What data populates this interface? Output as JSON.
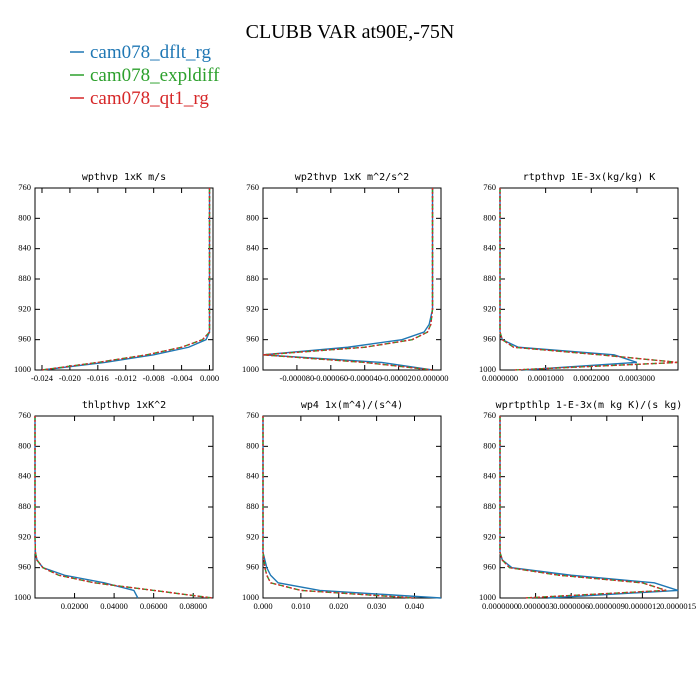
{
  "title": "CLUBB VAR at90E,-75N",
  "chart_data": [
    {
      "type": "line",
      "title": "wpthvp  1xK m/s",
      "y": [
        760,
        800,
        840,
        880,
        920,
        940,
        950,
        960,
        970,
        980,
        990,
        1000
      ],
      "series": [
        {
          "name": "cam078_dflt_rg",
          "color": "#1f77b4",
          "linestyle": "solid",
          "values": [
            0,
            0,
            0,
            0,
            0,
            0,
            0,
            -0.0005,
            -0.003,
            -0.008,
            -0.015,
            -0.024
          ]
        },
        {
          "name": "cam078_expldiff",
          "color": "#2ca02c",
          "linestyle": "dashed",
          "values": [
            0,
            0,
            0,
            0,
            0,
            0,
            0,
            -0.001,
            -0.004,
            -0.009,
            -0.016,
            -0.024
          ]
        },
        {
          "name": "cam078_qt1_rg",
          "color": "#d62728",
          "linestyle": "dotted",
          "values": [
            0,
            0,
            0,
            0,
            0,
            0,
            0,
            -0.001,
            -0.004,
            -0.009,
            -0.016,
            -0.024
          ]
        }
      ],
      "xlim": [
        -0.025,
        0.0005
      ],
      "ylim": [
        1000,
        760
      ],
      "xticks": [
        {
          "value": -0.024,
          "label": "-0.024"
        },
        {
          "value": -0.02,
          "label": "-0.020"
        },
        {
          "value": -0.016,
          "label": "-0.016"
        },
        {
          "value": -0.012,
          "label": "-0.012"
        },
        {
          "value": -0.008,
          "label": "-0.008"
        },
        {
          "value": -0.004,
          "label": "-0.004"
        },
        {
          "value": 0,
          "label": "0.000"
        }
      ],
      "yticks": [
        760,
        800,
        840,
        880,
        920,
        960,
        1000
      ]
    },
    {
      "type": "line",
      "title": "wp2thvp  1xK m^2/s^2",
      "y": [
        760,
        800,
        840,
        880,
        920,
        940,
        950,
        960,
        970,
        980,
        990,
        1000
      ],
      "series": [
        {
          "name": "cam078_dflt_rg",
          "color": "#1f77b4",
          "linestyle": "solid",
          "values": [
            0,
            0,
            0,
            0,
            0,
            -2e-06,
            -5e-06,
            -1.8e-05,
            -5e-05,
            -0.0001,
            -3e-05,
            0
          ]
        },
        {
          "name": "cam078_expldiff",
          "color": "#2ca02c",
          "linestyle": "dashed",
          "values": [
            0,
            0,
            0,
            0,
            0,
            -1e-06,
            -3e-06,
            -1.2e-05,
            -4e-05,
            -0.0001,
            -4e-05,
            0
          ]
        },
        {
          "name": "cam078_qt1_rg",
          "color": "#d62728",
          "linestyle": "dotted",
          "values": [
            0,
            0,
            0,
            0,
            0,
            -1e-06,
            -3e-06,
            -1.2e-05,
            -4e-05,
            -0.0001,
            -4e-05,
            0
          ]
        }
      ],
      "xlim": [
        -0.0001,
        5e-06
      ],
      "ylim": [
        1000,
        760
      ],
      "xticks": [
        {
          "value": -8e-05,
          "label": "-0.000080"
        },
        {
          "value": -6e-05,
          "label": "-0.000060"
        },
        {
          "value": -4e-05,
          "label": "-0.000040"
        },
        {
          "value": -2e-05,
          "label": "-0.000020"
        },
        {
          "value": 0,
          "label": "0.000000"
        }
      ],
      "yticks": [
        760,
        800,
        840,
        880,
        920,
        960,
        1000
      ]
    },
    {
      "type": "line",
      "title": "rtpthvp  1E-3x(kg/kg) K",
      "y": [
        760,
        800,
        840,
        880,
        920,
        940,
        950,
        960,
        970,
        980,
        990,
        1000
      ],
      "series": [
        {
          "name": "cam078_dflt_rg",
          "color": "#1f77b4",
          "linestyle": "solid",
          "values": [
            0,
            0,
            0,
            0,
            0,
            0,
            0,
            5e-06,
            4e-05,
            0.00025,
            0.0003,
            5e-05
          ]
        },
        {
          "name": "cam078_expldiff",
          "color": "#2ca02c",
          "linestyle": "dashed",
          "values": [
            0,
            0,
            0,
            0,
            0,
            0,
            0,
            5e-06,
            3e-05,
            0.00022,
            0.00039,
            3e-05
          ]
        },
        {
          "name": "cam078_qt1_rg",
          "color": "#d62728",
          "linestyle": "dotted",
          "values": [
            0,
            0,
            0,
            0,
            0,
            0,
            0,
            5e-06,
            3e-05,
            0.00022,
            0.00039,
            3e-05
          ]
        }
      ],
      "xlim": [
        0,
        0.00039
      ],
      "ylim": [
        1000,
        760
      ],
      "xticks": [
        {
          "value": 0,
          "label": "0.0000000"
        },
        {
          "value": 0.0001,
          "label": "0.0001000"
        },
        {
          "value": 0.0002,
          "label": "0.0002000"
        },
        {
          "value": 0.0003,
          "label": "0.0003000"
        }
      ],
      "yticks": [
        760,
        800,
        840,
        880,
        920,
        960,
        1000
      ]
    },
    {
      "type": "line",
      "title": "thlpthvp  1xK^2",
      "y": [
        760,
        800,
        840,
        880,
        920,
        940,
        950,
        960,
        970,
        980,
        990,
        1000
      ],
      "series": [
        {
          "name": "cam078_dflt_rg",
          "color": "#1f77b4",
          "linestyle": "solid",
          "values": [
            0,
            0,
            0,
            0,
            0,
            0.0002,
            0.001,
            0.004,
            0.015,
            0.035,
            0.05,
            0.052
          ]
        },
        {
          "name": "cam078_expldiff",
          "color": "#2ca02c",
          "linestyle": "dashed",
          "values": [
            0,
            0,
            0,
            0,
            0,
            0.0002,
            0.001,
            0.004,
            0.012,
            0.03,
            0.06,
            0.09
          ]
        },
        {
          "name": "cam078_qt1_rg",
          "color": "#d62728",
          "linestyle": "dotted",
          "values": [
            0,
            0,
            0,
            0,
            0,
            0.0002,
            0.001,
            0.004,
            0.012,
            0.03,
            0.06,
            0.09
          ]
        }
      ],
      "xlim": [
        0,
        0.09
      ],
      "ylim": [
        1000,
        760
      ],
      "xticks": [
        {
          "value": 0.02,
          "label": "0.02000"
        },
        {
          "value": 0.04,
          "label": "0.04000"
        },
        {
          "value": 0.06,
          "label": "0.06000"
        },
        {
          "value": 0.08,
          "label": "0.08000"
        }
      ],
      "yticks": [
        760,
        800,
        840,
        880,
        920,
        960,
        1000
      ]
    },
    {
      "type": "line",
      "title": "wp4  1x(m^4)/(s^4)",
      "y": [
        760,
        800,
        840,
        880,
        920,
        940,
        950,
        960,
        970,
        980,
        990,
        1000
      ],
      "series": [
        {
          "name": "cam078_dflt_rg",
          "color": "#1f77b4",
          "linestyle": "solid",
          "values": [
            0,
            0,
            0,
            0,
            0,
            0,
            0.0005,
            0.001,
            0.002,
            0.004,
            0.015,
            0.047
          ]
        },
        {
          "name": "cam078_expldiff",
          "color": "#2ca02c",
          "linestyle": "dashed",
          "values": [
            0,
            0,
            0,
            0,
            0,
            0,
            0.0003,
            0.0005,
            0.001,
            0.002,
            0.01,
            0.04
          ]
        },
        {
          "name": "cam078_qt1_rg",
          "color": "#d62728",
          "linestyle": "dotted",
          "values": [
            0,
            0,
            0,
            0,
            0,
            0,
            0.0003,
            0.0005,
            0.001,
            0.002,
            0.01,
            0.04
          ]
        }
      ],
      "xlim": [
        0,
        0.047
      ],
      "ylim": [
        1000,
        760
      ],
      "xticks": [
        {
          "value": 0,
          "label": "0.000"
        },
        {
          "value": 0.01,
          "label": "0.010"
        },
        {
          "value": 0.02,
          "label": "0.020"
        },
        {
          "value": 0.03,
          "label": "0.030"
        },
        {
          "value": 0.04,
          "label": "0.040"
        }
      ],
      "yticks": [
        760,
        800,
        840,
        880,
        920,
        960,
        1000
      ]
    },
    {
      "type": "line",
      "title": "wprtpthlp  1-E-3x(m kg K)/(s kg)",
      "y": [
        760,
        800,
        840,
        880,
        920,
        940,
        950,
        960,
        970,
        980,
        990,
        1000
      ],
      "series": [
        {
          "name": "cam078_dflt_rg",
          "color": "#1f77b4",
          "linestyle": "solid",
          "values": [
            0,
            0,
            0,
            0,
            0,
            0,
            2e-08,
            1e-07,
            6e-07,
            1.3e-06,
            1.5e-06,
            4e-07
          ]
        },
        {
          "name": "cam078_expldiff",
          "color": "#2ca02c",
          "linestyle": "dashed",
          "values": [
            0,
            0,
            0,
            0,
            0,
            0,
            2e-08,
            8e-08,
            5e-07,
            1.2e-06,
            1.4e-06,
            2e-07
          ]
        },
        {
          "name": "cam078_qt1_rg",
          "color": "#d62728",
          "linestyle": "dotted",
          "values": [
            0,
            0,
            0,
            0,
            0,
            0,
            2e-08,
            8e-08,
            5e-07,
            1.2e-06,
            1.4e-06,
            2e-07
          ]
        }
      ],
      "xlim": [
        0,
        1.5e-06
      ],
      "ylim": [
        1000,
        760
      ],
      "xticks": [
        {
          "value": 0,
          "label": "0.0000000"
        },
        {
          "value": 3e-07,
          "label": "0.0000003"
        },
        {
          "value": 6e-07,
          "label": "0.0000006"
        },
        {
          "value": 9e-07,
          "label": "0.0000009"
        },
        {
          "value": 1.2e-06,
          "label": "0.0000012"
        },
        {
          "value": 1.5e-06,
          "label": "0.0000015"
        }
      ],
      "yticks": [
        760,
        800,
        840,
        880,
        920,
        960,
        1000
      ]
    }
  ]
}
